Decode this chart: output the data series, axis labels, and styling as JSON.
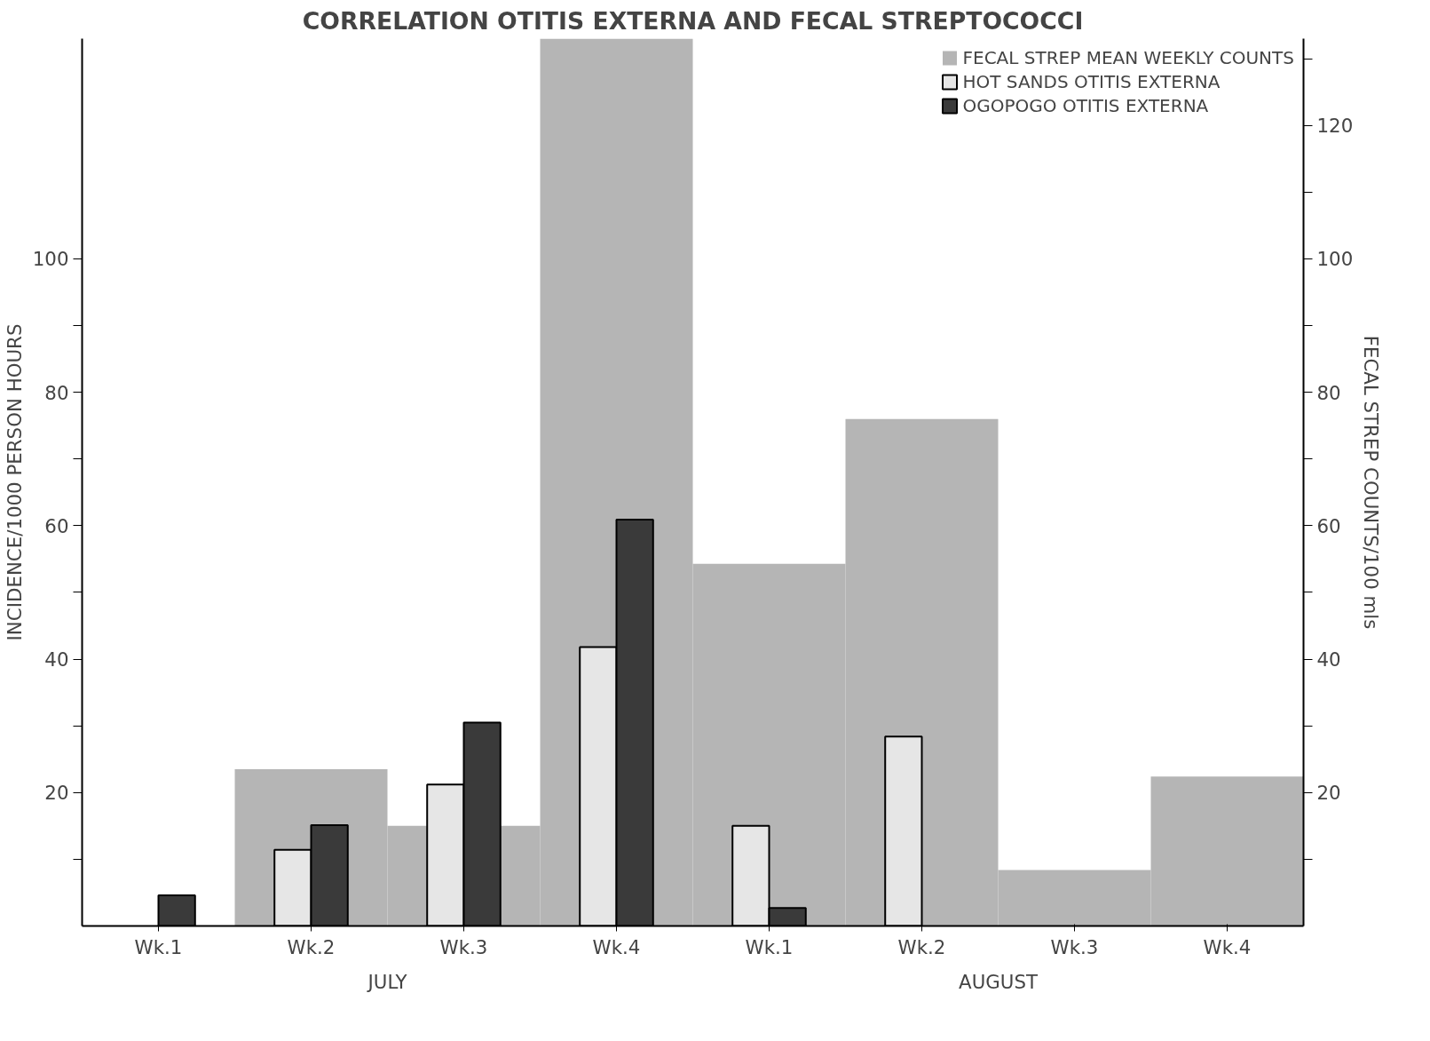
{
  "chart_data": {
    "type": "bar",
    "title": "CORRELATION OTITIS EXTERNA AND FECAL STREPTOCOCCI",
    "categories": [
      "Wk.1",
      "Wk.2",
      "Wk.3",
      "Wk.4",
      "Wk.1",
      "Wk.2",
      "Wk.3",
      "Wk.4"
    ],
    "series": [
      {
        "name": "FECAL STREP MEAN WEEKLY COUNTS",
        "color": "#b5b5b5",
        "axis": "y2",
        "values": [
          null,
          23.5,
          15,
          133,
          54.3,
          76,
          8.4,
          22.4
        ]
      },
      {
        "name": "HOT SANDS OTITIS EXTERNA",
        "color": "#e6e6e6",
        "values": [
          null,
          11.4,
          21.2,
          41.8,
          15,
          28.4,
          null,
          null
        ]
      },
      {
        "name": "OGOPOGO OTITIS EXTERNA",
        "color": "#3a3a3a",
        "values": [
          4.6,
          15.1,
          30.5,
          60.9,
          2.7,
          null,
          null,
          null
        ]
      }
    ],
    "ylabel": "INCIDENCE/1000 PERSON HOURS",
    "y2label": "FECAL STREP COUNTS/100 mls",
    "ylim": [
      0,
      133
    ],
    "yticks": [
      {
        "value": 10,
        "label": null
      },
      20,
      {
        "value": 30,
        "label": null
      },
      40,
      {
        "value": 50,
        "label": null
      },
      60,
      {
        "value": 70,
        "label": null
      },
      80,
      {
        "value": 90,
        "label": null
      },
      100
    ],
    "y2lim": [
      0,
      133
    ],
    "y2ticks": [
      {
        "value": 10,
        "label": null
      },
      20,
      {
        "value": 30,
        "label": null
      },
      40,
      {
        "value": 50,
        "label": null
      },
      60,
      {
        "value": 70,
        "label": null
      },
      80,
      {
        "value": 90,
        "label": null
      },
      100,
      {
        "value": 110,
        "label": null
      },
      120,
      {
        "value": 130,
        "label": null
      }
    ],
    "annotations": [
      "JULY",
      "AUGUST"
    ],
    "legend": "top right",
    "grid": false
  }
}
